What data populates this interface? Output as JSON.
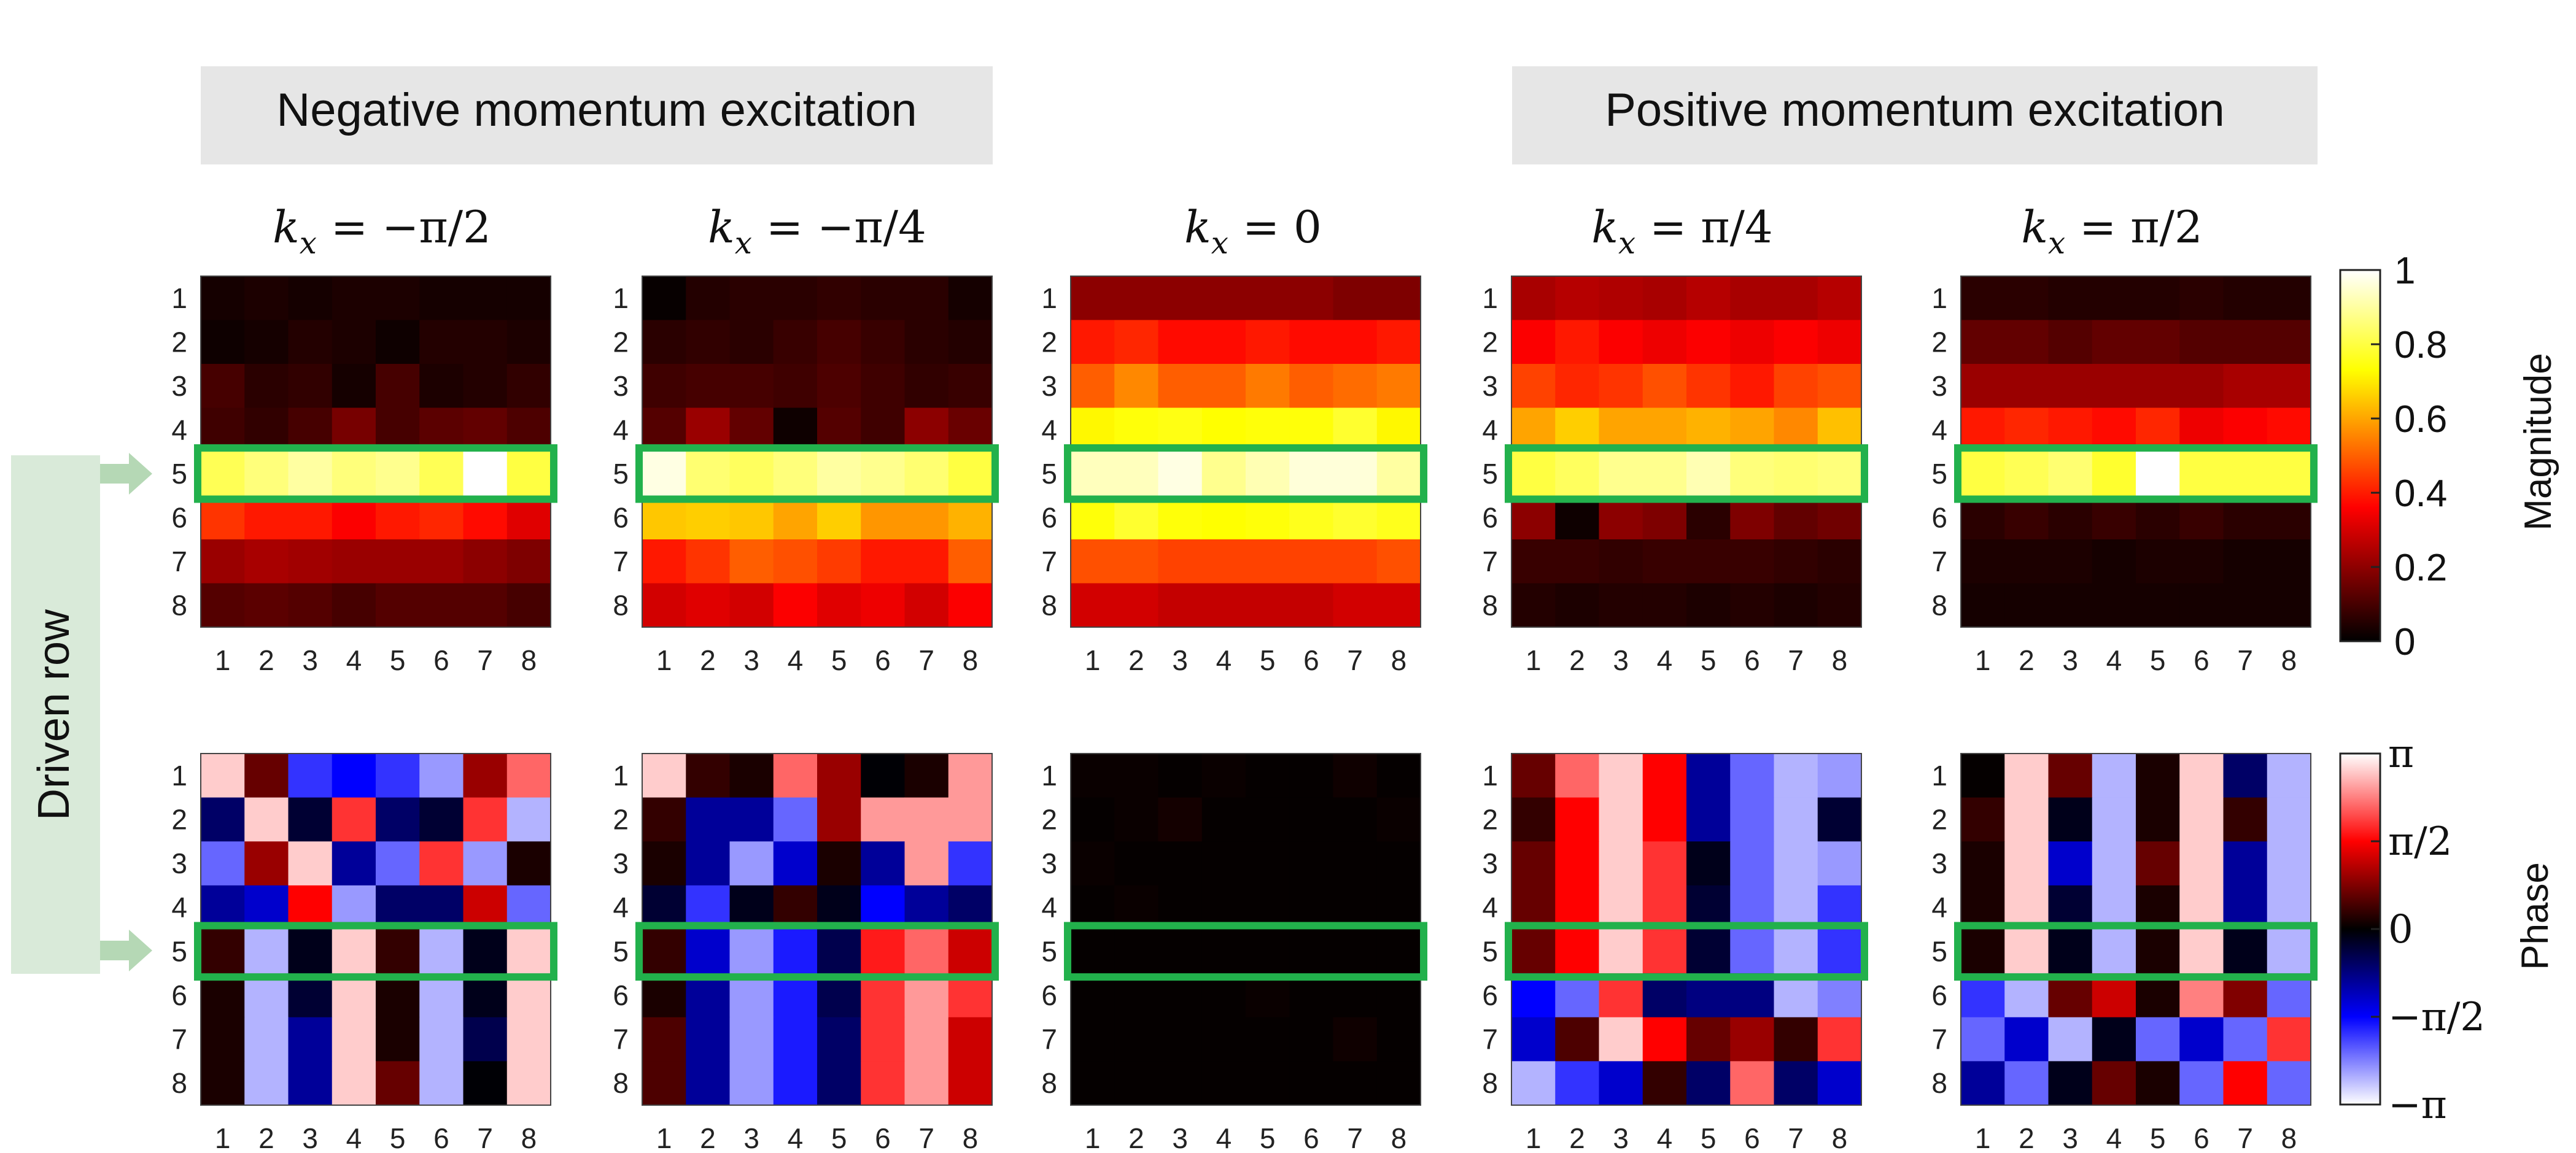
{
  "banners": {
    "negative": "Negative momentum excitation",
    "positive": "Positive momentum excitation"
  },
  "driven_row_label": "Driven row",
  "colorbars": {
    "magnitude": {
      "title": "Magnitude",
      "ticks": [
        "1",
        "0.8",
        "0.6",
        "0.4",
        "0.2",
        "0"
      ]
    },
    "phase": {
      "title": "Phase",
      "ticks": [
        "π",
        "π/2",
        "0",
        "−π/2",
        "−π"
      ]
    }
  },
  "colors": {
    "highlight": "#22b14c",
    "banner_bg": "#e6e6e6",
    "driven_bg": "#d9ead9",
    "arrow": "#b5d8b5"
  },
  "chart_data": [
    {
      "type": "heatmap",
      "quantity": "Magnitude",
      "colormap": "hot",
      "zlim": [
        0,
        1
      ],
      "rows": [
        "1",
        "2",
        "3",
        "4",
        "5",
        "6",
        "7",
        "8"
      ],
      "cols": [
        "1",
        "2",
        "3",
        "4",
        "5",
        "6",
        "7",
        "8"
      ],
      "highlight_row": 5,
      "panels": [
        {
          "title": "kx = −π/2",
          "kx_label": "k_x = −π/2",
          "values": [
            [
              0.03,
              0.04,
              0.03,
              0.04,
              0.04,
              0.03,
              0.03,
              0.03
            ],
            [
              0.02,
              0.03,
              0.05,
              0.04,
              0.02,
              0.05,
              0.05,
              0.04
            ],
            [
              0.1,
              0.06,
              0.07,
              0.03,
              0.1,
              0.04,
              0.05,
              0.07
            ],
            [
              0.09,
              0.07,
              0.1,
              0.17,
              0.1,
              0.13,
              0.14,
              0.11
            ],
            [
              0.82,
              0.86,
              0.9,
              0.86,
              0.88,
              0.82,
              1.0,
              0.8
            ],
            [
              0.44,
              0.4,
              0.4,
              0.36,
              0.4,
              0.42,
              0.38,
              0.32
            ],
            [
              0.22,
              0.24,
              0.23,
              0.22,
              0.22,
              0.22,
              0.2,
              0.18
            ],
            [
              0.12,
              0.13,
              0.12,
              0.1,
              0.12,
              0.12,
              0.12,
              0.1
            ]
          ]
        },
        {
          "title": "kx = −π/4",
          "kx_label": "k_x = −π/4",
          "values": [
            [
              0.01,
              0.05,
              0.06,
              0.06,
              0.07,
              0.06,
              0.06,
              0.03
            ],
            [
              0.06,
              0.07,
              0.06,
              0.08,
              0.1,
              0.08,
              0.06,
              0.05
            ],
            [
              0.09,
              0.1,
              0.1,
              0.09,
              0.11,
              0.09,
              0.07,
              0.08
            ],
            [
              0.12,
              0.22,
              0.14,
              0.02,
              0.12,
              0.09,
              0.2,
              0.15
            ],
            [
              0.97,
              0.85,
              0.83,
              0.86,
              0.9,
              0.88,
              0.85,
              0.8
            ],
            [
              0.65,
              0.66,
              0.65,
              0.6,
              0.66,
              0.58,
              0.58,
              0.62
            ],
            [
              0.4,
              0.44,
              0.5,
              0.48,
              0.45,
              0.4,
              0.4,
              0.5
            ],
            [
              0.3,
              0.32,
              0.3,
              0.36,
              0.32,
              0.34,
              0.3,
              0.36
            ]
          ]
        },
        {
          "title": "kx = 0",
          "kx_label": "k_x = 0",
          "values": [
            [
              0.2,
              0.2,
              0.2,
              0.2,
              0.2,
              0.2,
              0.18,
              0.18
            ],
            [
              0.4,
              0.42,
              0.38,
              0.38,
              0.4,
              0.38,
              0.38,
              0.4
            ],
            [
              0.5,
              0.56,
              0.5,
              0.5,
              0.54,
              0.5,
              0.52,
              0.54
            ],
            [
              0.72,
              0.74,
              0.75,
              0.73,
              0.74,
              0.74,
              0.78,
              0.72
            ],
            [
              0.93,
              0.93,
              0.97,
              0.88,
              0.92,
              0.96,
              0.96,
              0.9
            ],
            [
              0.74,
              0.78,
              0.74,
              0.73,
              0.74,
              0.76,
              0.78,
              0.76
            ],
            [
              0.48,
              0.48,
              0.46,
              0.46,
              0.46,
              0.46,
              0.46,
              0.48
            ],
            [
              0.3,
              0.3,
              0.28,
              0.28,
              0.28,
              0.28,
              0.3,
              0.3
            ]
          ]
        },
        {
          "title": "kx = π/4",
          "kx_label": "k_x = π/4",
          "values": [
            [
              0.24,
              0.26,
              0.25,
              0.24,
              0.26,
              0.24,
              0.24,
              0.26
            ],
            [
              0.36,
              0.4,
              0.36,
              0.34,
              0.36,
              0.34,
              0.36,
              0.34
            ],
            [
              0.46,
              0.42,
              0.44,
              0.48,
              0.44,
              0.4,
              0.46,
              0.48
            ],
            [
              0.6,
              0.66,
              0.6,
              0.6,
              0.62,
              0.6,
              0.56,
              0.64
            ],
            [
              0.8,
              0.83,
              0.88,
              0.88,
              0.92,
              0.86,
              0.85,
              0.86
            ],
            [
              0.2,
              0.02,
              0.2,
              0.18,
              0.06,
              0.18,
              0.14,
              0.16
            ],
            [
              0.08,
              0.08,
              0.07,
              0.08,
              0.08,
              0.08,
              0.07,
              0.06
            ],
            [
              0.05,
              0.04,
              0.05,
              0.05,
              0.04,
              0.05,
              0.04,
              0.05
            ]
          ]
        },
        {
          "title": "kx = π/2",
          "kx_label": "k_x = π/2",
          "values": [
            [
              0.06,
              0.06,
              0.05,
              0.05,
              0.05,
              0.06,
              0.05,
              0.05
            ],
            [
              0.14,
              0.14,
              0.12,
              0.14,
              0.14,
              0.12,
              0.12,
              0.12
            ],
            [
              0.22,
              0.22,
              0.22,
              0.22,
              0.22,
              0.22,
              0.24,
              0.24
            ],
            [
              0.4,
              0.42,
              0.4,
              0.38,
              0.42,
              0.34,
              0.36,
              0.38
            ],
            [
              0.8,
              0.82,
              0.85,
              0.78,
              1.0,
              0.8,
              0.8,
              0.8
            ],
            [
              0.06,
              0.08,
              0.06,
              0.08,
              0.06,
              0.08,
              0.06,
              0.06
            ],
            [
              0.04,
              0.04,
              0.04,
              0.03,
              0.04,
              0.04,
              0.03,
              0.03
            ],
            [
              0.03,
              0.03,
              0.03,
              0.03,
              0.03,
              0.03,
              0.03,
              0.03
            ]
          ]
        }
      ]
    },
    {
      "type": "heatmap",
      "quantity": "Phase",
      "colormap": "blue-black-red diverging",
      "zlim": [
        "-π",
        "π"
      ],
      "value_units": "fraction of π",
      "rows": [
        "1",
        "2",
        "3",
        "4",
        "5",
        "6",
        "7",
        "8"
      ],
      "cols": [
        "1",
        "2",
        "3",
        "4",
        "5",
        "6",
        "7",
        "8"
      ],
      "highlight_row": 5,
      "panels": [
        {
          "title": "kx = −π/2",
          "values": [
            [
              0.9,
              0.2,
              -0.6,
              -0.5,
              -0.6,
              -0.8,
              0.3,
              0.7
            ],
            [
              -0.2,
              0.9,
              -0.1,
              0.6,
              -0.2,
              -0.1,
              0.6,
              -0.85
            ],
            [
              -0.7,
              0.3,
              0.9,
              -0.3,
              -0.7,
              0.6,
              -0.8,
              0.05
            ],
            [
              -0.3,
              -0.4,
              0.5,
              -0.8,
              -0.2,
              -0.2,
              0.4,
              -0.7
            ],
            [
              0.1,
              -0.85,
              -0.05,
              0.9,
              0.1,
              -0.85,
              -0.05,
              0.9
            ],
            [
              0.05,
              -0.85,
              -0.1,
              0.9,
              0.05,
              -0.85,
              -0.05,
              0.9
            ],
            [
              0.05,
              -0.85,
              -0.3,
              0.9,
              0.05,
              -0.85,
              -0.15,
              0.9
            ],
            [
              0.05,
              -0.85,
              -0.3,
              0.9,
              0.2,
              -0.85,
              -0.01,
              0.9
            ]
          ]
        },
        {
          "title": "kx = −π/4",
          "values": [
            [
              0.9,
              0.1,
              0.05,
              0.7,
              0.3,
              -0.01,
              0.05,
              0.8
            ],
            [
              0.1,
              -0.3,
              -0.3,
              -0.7,
              0.3,
              0.8,
              0.8,
              0.8
            ],
            [
              0.05,
              -0.3,
              -0.8,
              -0.4,
              0.05,
              -0.3,
              0.8,
              -0.6
            ],
            [
              -0.1,
              -0.6,
              -0.05,
              0.1,
              -0.05,
              -0.5,
              -0.3,
              -0.2
            ],
            [
              0.1,
              -0.4,
              -0.8,
              -0.55,
              -0.15,
              0.55,
              0.7,
              0.4
            ],
            [
              0.05,
              -0.3,
              -0.8,
              -0.55,
              -0.15,
              0.6,
              0.8,
              0.6
            ],
            [
              0.15,
              -0.3,
              -0.8,
              -0.55,
              -0.2,
              0.6,
              0.8,
              0.4
            ],
            [
              0.15,
              -0.3,
              -0.8,
              -0.55,
              -0.2,
              0.6,
              0.8,
              0.4
            ]
          ]
        },
        {
          "title": "kx = 0",
          "values": [
            [
              0.02,
              0.02,
              0.01,
              0.02,
              0.01,
              0.01,
              0.03,
              0.01
            ],
            [
              0.01,
              0.02,
              0.04,
              0.01,
              0.01,
              0.01,
              0.01,
              0.02
            ],
            [
              0.02,
              0.01,
              0.01,
              0.01,
              0.01,
              0.01,
              0.01,
              0.01
            ],
            [
              0.01,
              0.02,
              0.01,
              0.01,
              0.01,
              0.01,
              0.01,
              0.01
            ],
            [
              0.01,
              0.01,
              0.01,
              0.01,
              0.01,
              0.01,
              0.01,
              0.01
            ],
            [
              0.01,
              0.01,
              0.01,
              0.01,
              0.02,
              0.01,
              0.01,
              0.01
            ],
            [
              0.01,
              0.01,
              0.01,
              0.01,
              0.01,
              0.01,
              0.03,
              0.01
            ],
            [
              0.01,
              0.01,
              0.01,
              0.01,
              0.01,
              0.01,
              0.01,
              0.01
            ]
          ]
        },
        {
          "title": "kx = π/4",
          "values": [
            [
              0.2,
              0.7,
              0.9,
              0.5,
              -0.3,
              -0.7,
              -0.85,
              -0.8
            ],
            [
              0.1,
              0.5,
              0.9,
              0.5,
              -0.3,
              -0.7,
              -0.85,
              -0.1
            ],
            [
              0.2,
              0.5,
              0.9,
              0.6,
              -0.05,
              -0.7,
              -0.85,
              -0.8
            ],
            [
              0.2,
              0.5,
              0.9,
              0.6,
              -0.1,
              -0.7,
              -0.85,
              -0.6
            ],
            [
              0.2,
              0.5,
              0.9,
              0.6,
              -0.1,
              -0.7,
              -0.85,
              -0.6
            ],
            [
              -0.5,
              -0.7,
              0.6,
              -0.2,
              -0.25,
              -0.25,
              -0.85,
              -0.75
            ],
            [
              -0.4,
              0.15,
              0.9,
              0.5,
              0.2,
              0.3,
              0.1,
              0.6
            ],
            [
              -0.85,
              -0.6,
              -0.4,
              0.1,
              -0.2,
              0.7,
              -0.2,
              -0.4
            ]
          ]
        },
        {
          "title": "kx = π/2",
          "values": [
            [
              0.01,
              0.9,
              0.2,
              -0.85,
              0.05,
              0.9,
              -0.2,
              -0.85
            ],
            [
              0.1,
              0.9,
              -0.05,
              -0.85,
              0.05,
              0.9,
              0.1,
              -0.85
            ],
            [
              0.05,
              0.9,
              -0.4,
              -0.85,
              0.2,
              0.9,
              -0.3,
              -0.85
            ],
            [
              0.05,
              0.9,
              -0.1,
              -0.85,
              0.05,
              0.9,
              -0.3,
              -0.85
            ],
            [
              0.05,
              0.9,
              -0.05,
              -0.85,
              0.05,
              0.9,
              -0.05,
              -0.85
            ],
            [
              -0.6,
              -0.85,
              0.2,
              0.4,
              0.05,
              0.75,
              0.25,
              -0.7
            ],
            [
              -0.7,
              -0.4,
              -0.85,
              -0.05,
              -0.7,
              -0.4,
              -0.7,
              0.6
            ],
            [
              -0.3,
              -0.7,
              -0.05,
              0.2,
              0.05,
              -0.7,
              0.5,
              -0.7
            ]
          ]
        }
      ]
    }
  ]
}
